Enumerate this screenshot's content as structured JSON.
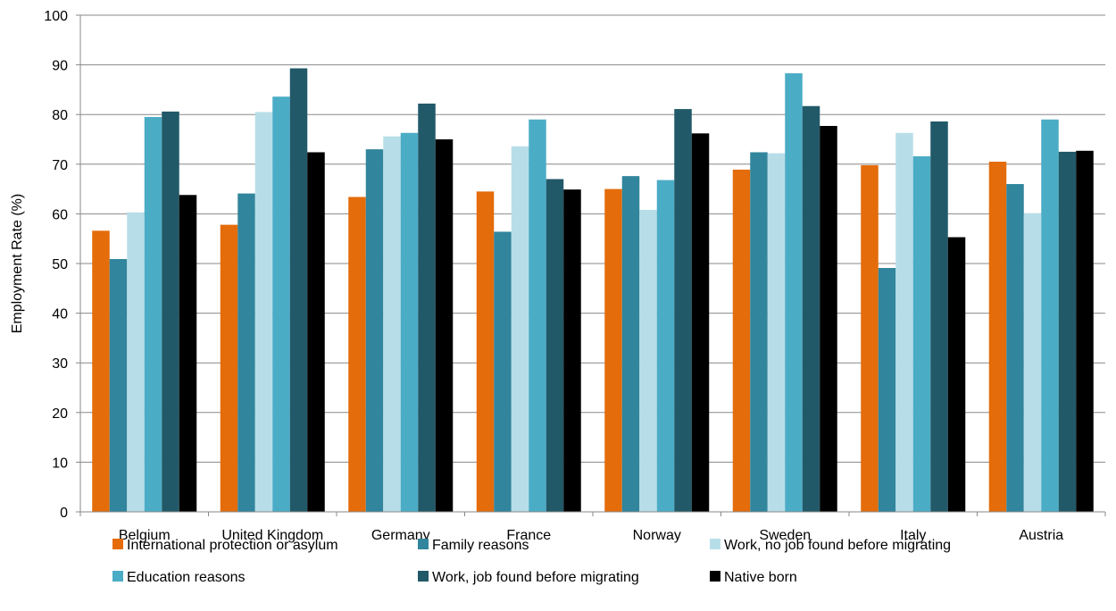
{
  "chart_data": {
    "type": "bar",
    "title": "",
    "xlabel": "",
    "ylabel": "Employment Rate (%)",
    "ylim": [
      0,
      100
    ],
    "yticks": [
      0,
      10,
      20,
      30,
      40,
      50,
      60,
      70,
      80,
      90,
      100
    ],
    "grid": true,
    "legend_position": "bottom",
    "categories": [
      "Belgium",
      "United Kingdom",
      "Germany",
      "France",
      "Norway",
      "Sweden",
      "Italy",
      "Austria"
    ],
    "series": [
      {
        "name": "International protection or asylum",
        "color": "#e46c0a",
        "values": [
          56.6,
          57.8,
          63.4,
          64.5,
          65.0,
          68.9,
          69.8,
          70.5
        ]
      },
      {
        "name": "Family reasons",
        "color": "#31859c",
        "values": [
          50.9,
          64.1,
          73.0,
          56.4,
          67.6,
          72.4,
          49.1,
          66.0
        ]
      },
      {
        "name": "Work, no job found before migrating",
        "color": "#b7dee8",
        "values": [
          60.3,
          80.5,
          75.6,
          73.6,
          60.8,
          72.2,
          76.3,
          60.1
        ]
      },
      {
        "name": "Education reasons",
        "color": "#4bacc6",
        "values": [
          79.5,
          83.6,
          76.3,
          79.0,
          66.8,
          88.3,
          71.6,
          79.0
        ]
      },
      {
        "name": "Work, job found before migrating",
        "color": "#215968",
        "values": [
          80.6,
          89.3,
          82.2,
          67.0,
          81.1,
          81.7,
          78.6,
          72.5
        ]
      },
      {
        "name": "Native born",
        "color": "#000000",
        "values": [
          63.8,
          72.4,
          75.0,
          64.9,
          76.2,
          77.7,
          55.3,
          72.7
        ]
      }
    ]
  }
}
